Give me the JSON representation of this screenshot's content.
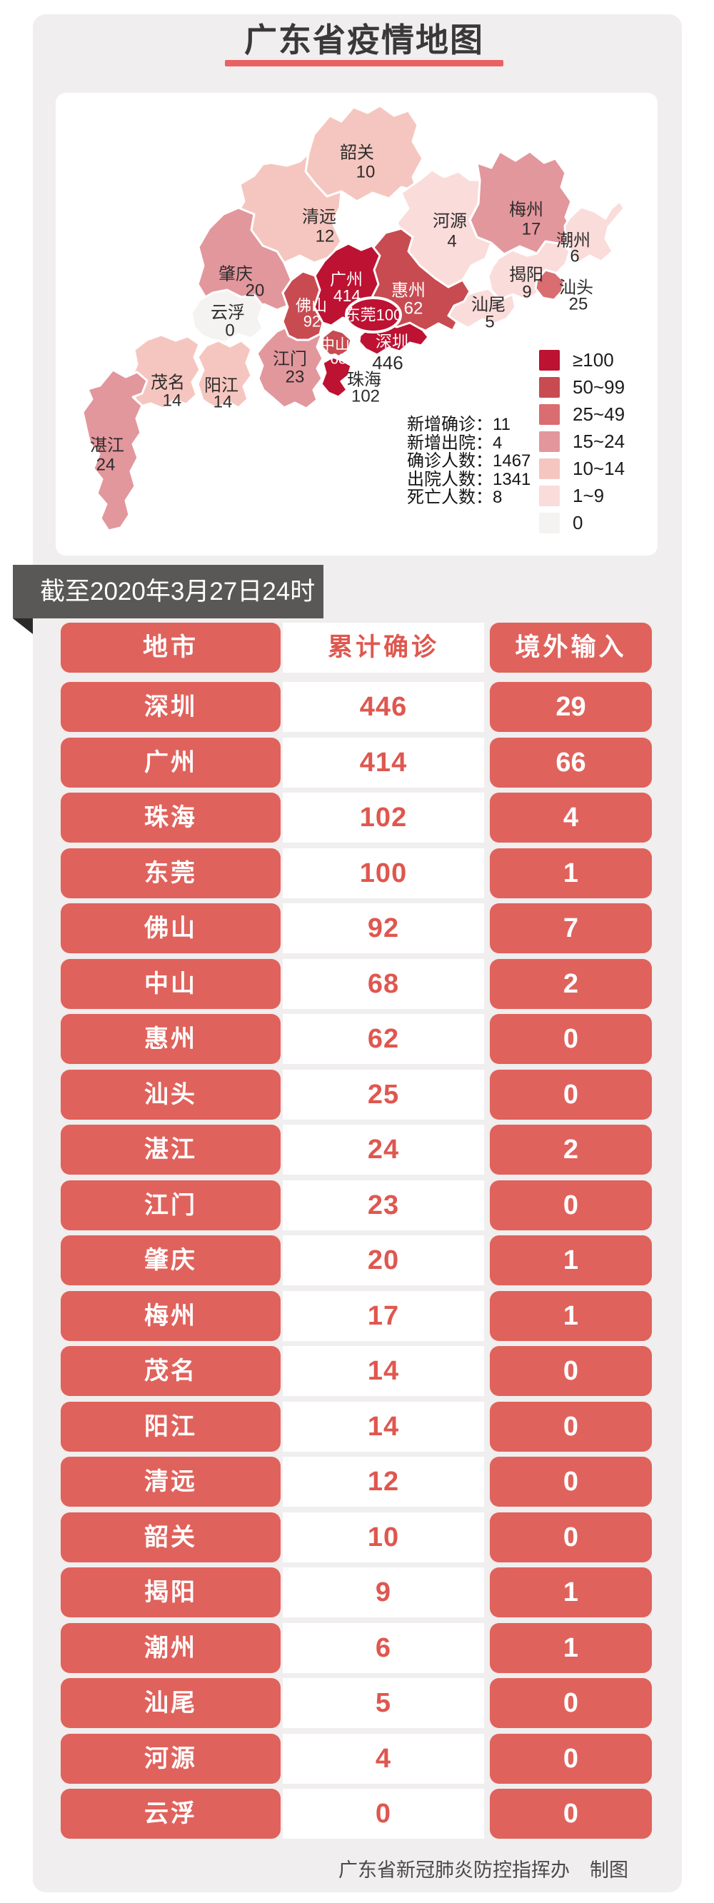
{
  "title": "广东省疫情地图",
  "banner": {
    "date_label": "截至2020年3月27日24时"
  },
  "stats": [
    {
      "label": "新增确诊",
      "value": "11"
    },
    {
      "label": "新增出院",
      "value": "4"
    },
    {
      "label": "确诊人数",
      "value": "1467"
    },
    {
      "label": "出院人数",
      "value": "1341"
    },
    {
      "label": "死亡人数",
      "value": "8"
    }
  ],
  "legend": [
    {
      "label": "≥100",
      "bucket": "b100"
    },
    {
      "label": "50~99",
      "bucket": "b50"
    },
    {
      "label": "25~49",
      "bucket": "b25"
    },
    {
      "label": "15~24",
      "bucket": "b15"
    },
    {
      "label": "10~14",
      "bucket": "b10"
    },
    {
      "label": "1~9",
      "bucket": "b1"
    },
    {
      "label": "0",
      "bucket": "b0"
    }
  ],
  "colors": {
    "b100": "#bd1232",
    "b50": "#c84b51",
    "b25": "#d96d72",
    "b15": "#e2979d",
    "b10": "#f5c6bf",
    "b1": "#fadcdb",
    "b0": "#f5f2f2",
    "pill_red": "#e0625c",
    "text_red": "#df574f",
    "underline_red": "#e96263",
    "ribbon_gray": "#5a5757"
  },
  "table": {
    "headers": [
      "地市",
      "累计确诊",
      "境外输入"
    ]
  },
  "footer": {
    "credit": "广东省新冠肺炎防控指挥办",
    "maker": "制图"
  },
  "chart_data": [
    {
      "type": "choropleth-map",
      "title": "广东省疫情地图",
      "value_label": "累计确诊",
      "legend_buckets": [
        "≥100",
        "50~99",
        "25~49",
        "15~24",
        "10~14",
        "1~9",
        "0"
      ],
      "regions": [
        {
          "name": "韶关",
          "value": 10
        },
        {
          "name": "清远",
          "value": 12
        },
        {
          "name": "梅州",
          "value": 17
        },
        {
          "name": "河源",
          "value": 4
        },
        {
          "name": "潮州",
          "value": 6
        },
        {
          "name": "揭阳",
          "value": 9
        },
        {
          "name": "汕尾",
          "value": 5
        },
        {
          "name": "惠州",
          "value": 62
        },
        {
          "name": "肇庆",
          "value": 20
        },
        {
          "name": "云浮",
          "value": 0
        },
        {
          "name": "茂名",
          "value": 14
        },
        {
          "name": "阳江",
          "value": 14
        },
        {
          "name": "湛江",
          "value": 24
        },
        {
          "name": "江门",
          "value": 23
        },
        {
          "name": "广州",
          "value": 414
        },
        {
          "name": "佛山",
          "value": 92
        },
        {
          "name": "中山",
          "value": 68
        },
        {
          "name": "珠海",
          "value": 102
        },
        {
          "name": "深圳",
          "value": 446
        },
        {
          "name": "汕头",
          "value": 25
        },
        {
          "name": "东莞",
          "value": 100
        }
      ]
    },
    {
      "type": "table",
      "columns": [
        "地市",
        "累计确诊",
        "境外输入"
      ],
      "rows": [
        [
          "深圳",
          446,
          29
        ],
        [
          "广州",
          414,
          66
        ],
        [
          "珠海",
          102,
          4
        ],
        [
          "东莞",
          100,
          1
        ],
        [
          "佛山",
          92,
          7
        ],
        [
          "中山",
          68,
          2
        ],
        [
          "惠州",
          62,
          0
        ],
        [
          "汕头",
          25,
          0
        ],
        [
          "湛江",
          24,
          2
        ],
        [
          "江门",
          23,
          0
        ],
        [
          "肇庆",
          20,
          1
        ],
        [
          "梅州",
          17,
          1
        ],
        [
          "茂名",
          14,
          0
        ],
        [
          "阳江",
          14,
          0
        ],
        [
          "清远",
          12,
          0
        ],
        [
          "韶关",
          10,
          0
        ],
        [
          "揭阳",
          9,
          1
        ],
        [
          "潮州",
          6,
          1
        ],
        [
          "汕尾",
          5,
          0
        ],
        [
          "河源",
          4,
          0
        ],
        [
          "云浮",
          0,
          0
        ]
      ]
    }
  ]
}
